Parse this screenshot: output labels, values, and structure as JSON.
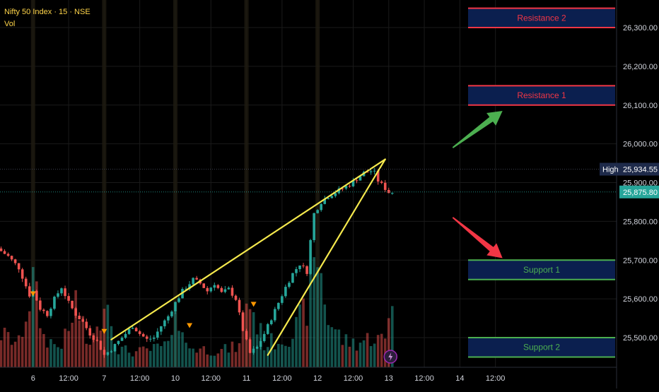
{
  "header": {
    "title": "Nifty 50 Index · 15 · NSE",
    "indicator": "Vol"
  },
  "colors": {
    "background": "#000000",
    "grid": "#1a1a1a",
    "up": "#26a69a",
    "down": "#ef5350",
    "trendline": "#f5e94d",
    "resistance": "#f23645",
    "support": "#4caf50",
    "zone_fill": "#0b1f4f",
    "resistance_text": "#f23645",
    "support_text": "#4caf50",
    "arrow_up": "#4caf50",
    "arrow_down": "#f23645",
    "last_price_bg": "#26a69a",
    "high_tag_bg": "#1e2a4a"
  },
  "chart_data": {
    "type": "candlestick",
    "symbol": "Nifty 50 Index",
    "interval": "15",
    "exchange": "NSE",
    "ylim": [
      25440,
      26370
    ],
    "y_ticks": [
      "26,300.00",
      "26,200.00",
      "26,100.00",
      "26,000.00",
      "25,900.00",
      "25,800.00",
      "25,700.00",
      "25,600.00",
      "25,500.00"
    ],
    "y_tick_values": [
      26300,
      26200,
      26100,
      26000,
      25900,
      25800,
      25700,
      25600,
      25500
    ],
    "x_ticks": [
      "12:00",
      "6",
      "12:00",
      "7",
      "12:00",
      "10",
      "12:00",
      "11",
      "12:00",
      "12",
      "12:00",
      "13",
      "12:00",
      "14",
      "12:00"
    ],
    "x_tick_bars": [
      -4,
      9,
      19,
      29,
      39,
      49,
      59,
      69,
      79,
      89,
      99,
      109,
      119,
      129,
      139
    ],
    "session_start_bars": [
      9,
      29,
      49,
      69,
      89
    ],
    "last_price": "25,875.80",
    "last_price_value": 25875.8,
    "high_label": "High",
    "high_price": "25,934.55",
    "high_value": 25934.55,
    "price_path": [
      [
        0,
        25730
      ],
      [
        3,
        25710
      ],
      [
        6,
        25680
      ],
      [
        9,
        25610
      ],
      [
        10,
        25620
      ],
      [
        12,
        25575
      ],
      [
        14,
        25560
      ],
      [
        16,
        25600
      ],
      [
        18,
        25630
      ],
      [
        20,
        25590
      ],
      [
        22,
        25560
      ],
      [
        24,
        25540
      ],
      [
        26,
        25510
      ],
      [
        28,
        25490
      ],
      [
        30,
        25455
      ],
      [
        32,
        25470
      ],
      [
        34,
        25490
      ],
      [
        36,
        25510
      ],
      [
        38,
        25530
      ],
      [
        40,
        25510
      ],
      [
        42,
        25495
      ],
      [
        44,
        25500
      ],
      [
        46,
        25530
      ],
      [
        48,
        25555
      ],
      [
        50,
        25590
      ],
      [
        52,
        25620
      ],
      [
        54,
        25640
      ],
      [
        55,
        25650
      ],
      [
        57,
        25640
      ],
      [
        59,
        25620
      ],
      [
        61,
        25640
      ],
      [
        63,
        25615
      ],
      [
        65,
        25625
      ],
      [
        67,
        25600
      ],
      [
        69,
        25520
      ],
      [
        71,
        25460
      ],
      [
        73,
        25475
      ],
      [
        75,
        25510
      ],
      [
        77,
        25550
      ],
      [
        79,
        25590
      ],
      [
        81,
        25630
      ],
      [
        83,
        25665
      ],
      [
        85,
        25690
      ],
      [
        87,
        25670
      ],
      [
        88,
        25750
      ],
      [
        89,
        25820
      ],
      [
        91,
        25850
      ],
      [
        93,
        25865
      ],
      [
        95,
        25875
      ],
      [
        97,
        25885
      ],
      [
        99,
        25895
      ],
      [
        101,
        25910
      ],
      [
        103,
        25925
      ],
      [
        105,
        25930
      ],
      [
        106,
        25925
      ],
      [
        107,
        25905
      ],
      [
        108,
        25895
      ],
      [
        109,
        25885
      ],
      [
        110,
        25875
      ]
    ],
    "volume_profile": [
      [
        0,
        55
      ],
      [
        5,
        40
      ],
      [
        9,
        140
      ],
      [
        12,
        50
      ],
      [
        16,
        35
      ],
      [
        19,
        55
      ],
      [
        21,
        110
      ],
      [
        24,
        40
      ],
      [
        27,
        55
      ],
      [
        29,
        130
      ],
      [
        33,
        30
      ],
      [
        38,
        25
      ],
      [
        43,
        30
      ],
      [
        48,
        40
      ],
      [
        49,
        120
      ],
      [
        52,
        35
      ],
      [
        57,
        30
      ],
      [
        62,
        28
      ],
      [
        67,
        35
      ],
      [
        69,
        120
      ],
      [
        71,
        90
      ],
      [
        74,
        40
      ],
      [
        78,
        45
      ],
      [
        82,
        55
      ],
      [
        86,
        100
      ],
      [
        89,
        190
      ],
      [
        92,
        80
      ],
      [
        96,
        45
      ],
      [
        100,
        40
      ],
      [
        104,
        50
      ],
      [
        108,
        45
      ],
      [
        110,
        125
      ]
    ],
    "zones": [
      {
        "kind": "resistance",
        "label": "Resistance 2",
        "top": 26350,
        "bottom": 26300
      },
      {
        "kind": "resistance",
        "label": "Resistance 1",
        "top": 26150,
        "bottom": 26100
      },
      {
        "kind": "support",
        "label": "Support 1",
        "top": 25700,
        "bottom": 25650
      },
      {
        "kind": "support",
        "label": "Support 2",
        "top": 25500,
        "bottom": 25450
      }
    ],
    "trendlines": [
      {
        "from": [
          31,
          25495
        ],
        "to": [
          108,
          25960
        ]
      },
      {
        "from": [
          75,
          25455
        ],
        "to": [
          108,
          25960
        ]
      }
    ],
    "arrows": [
      {
        "direction": "up",
        "from": [
          127,
          25990
        ],
        "to": [
          141,
          26085
        ]
      },
      {
        "direction": "down",
        "from": [
          127,
          25810
        ],
        "to": [
          141,
          25705
        ]
      }
    ],
    "markers": [
      [
        9,
        25612
      ],
      [
        29,
        25515
      ],
      [
        53,
        25530
      ],
      [
        71,
        25585
      ]
    ]
  }
}
